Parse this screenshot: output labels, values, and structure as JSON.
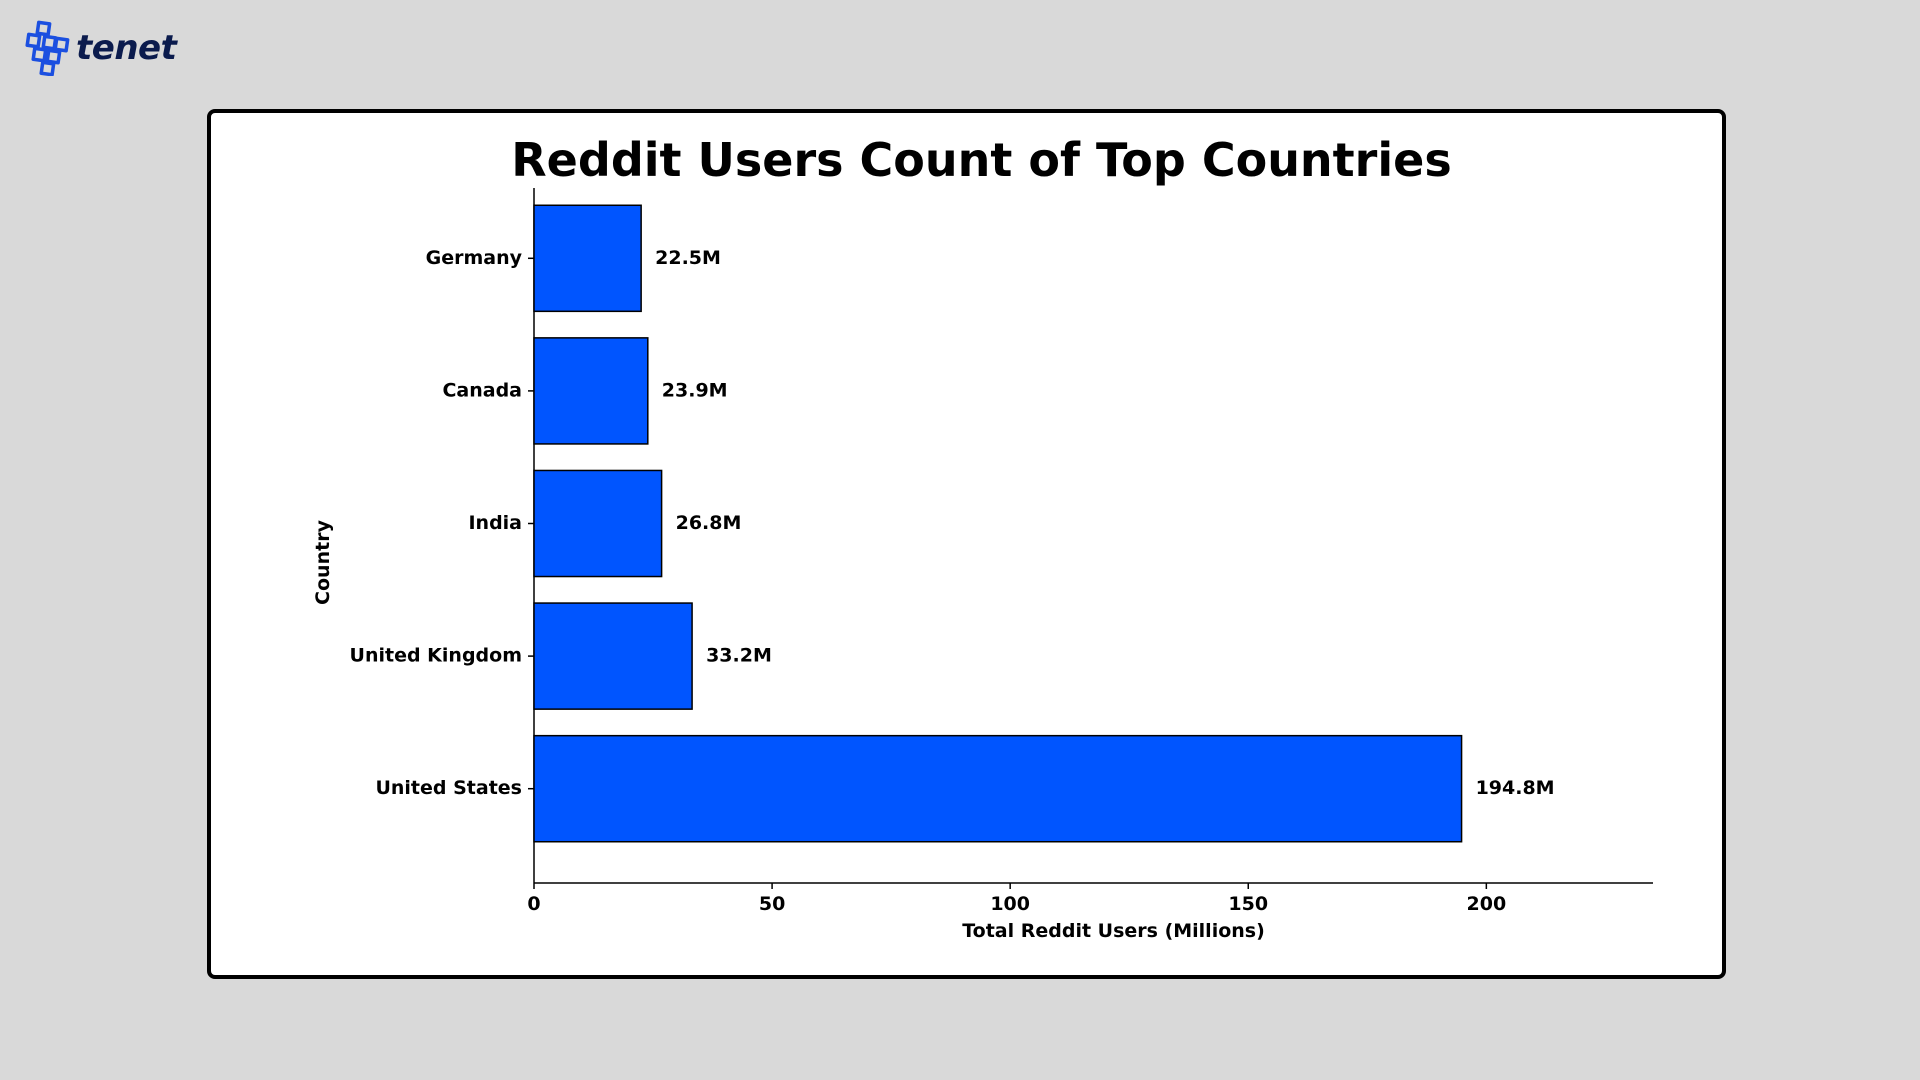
{
  "brand": {
    "name": "tenet",
    "accent": "#1b4fe0"
  },
  "chart_data": {
    "type": "bar",
    "orientation": "horizontal",
    "title": "Reddit Users Count of Top Countries",
    "xlabel": "Total Reddit Users (Millions)",
    "ylabel": "Country",
    "categories": [
      "United States",
      "United Kingdom",
      "India",
      "Canada",
      "Germany"
    ],
    "values": [
      194.8,
      33.2,
      26.8,
      23.9,
      22.5
    ],
    "value_labels": [
      "194.8M",
      "33.2M",
      "26.8M",
      "23.9M",
      "22.5M"
    ],
    "xlim": [
      0,
      235
    ],
    "xticks": [
      0,
      50,
      100,
      150,
      200
    ],
    "bar_color": "#0055ff",
    "bar_edge_color": "#000000",
    "grid": false,
    "legend": "none"
  }
}
